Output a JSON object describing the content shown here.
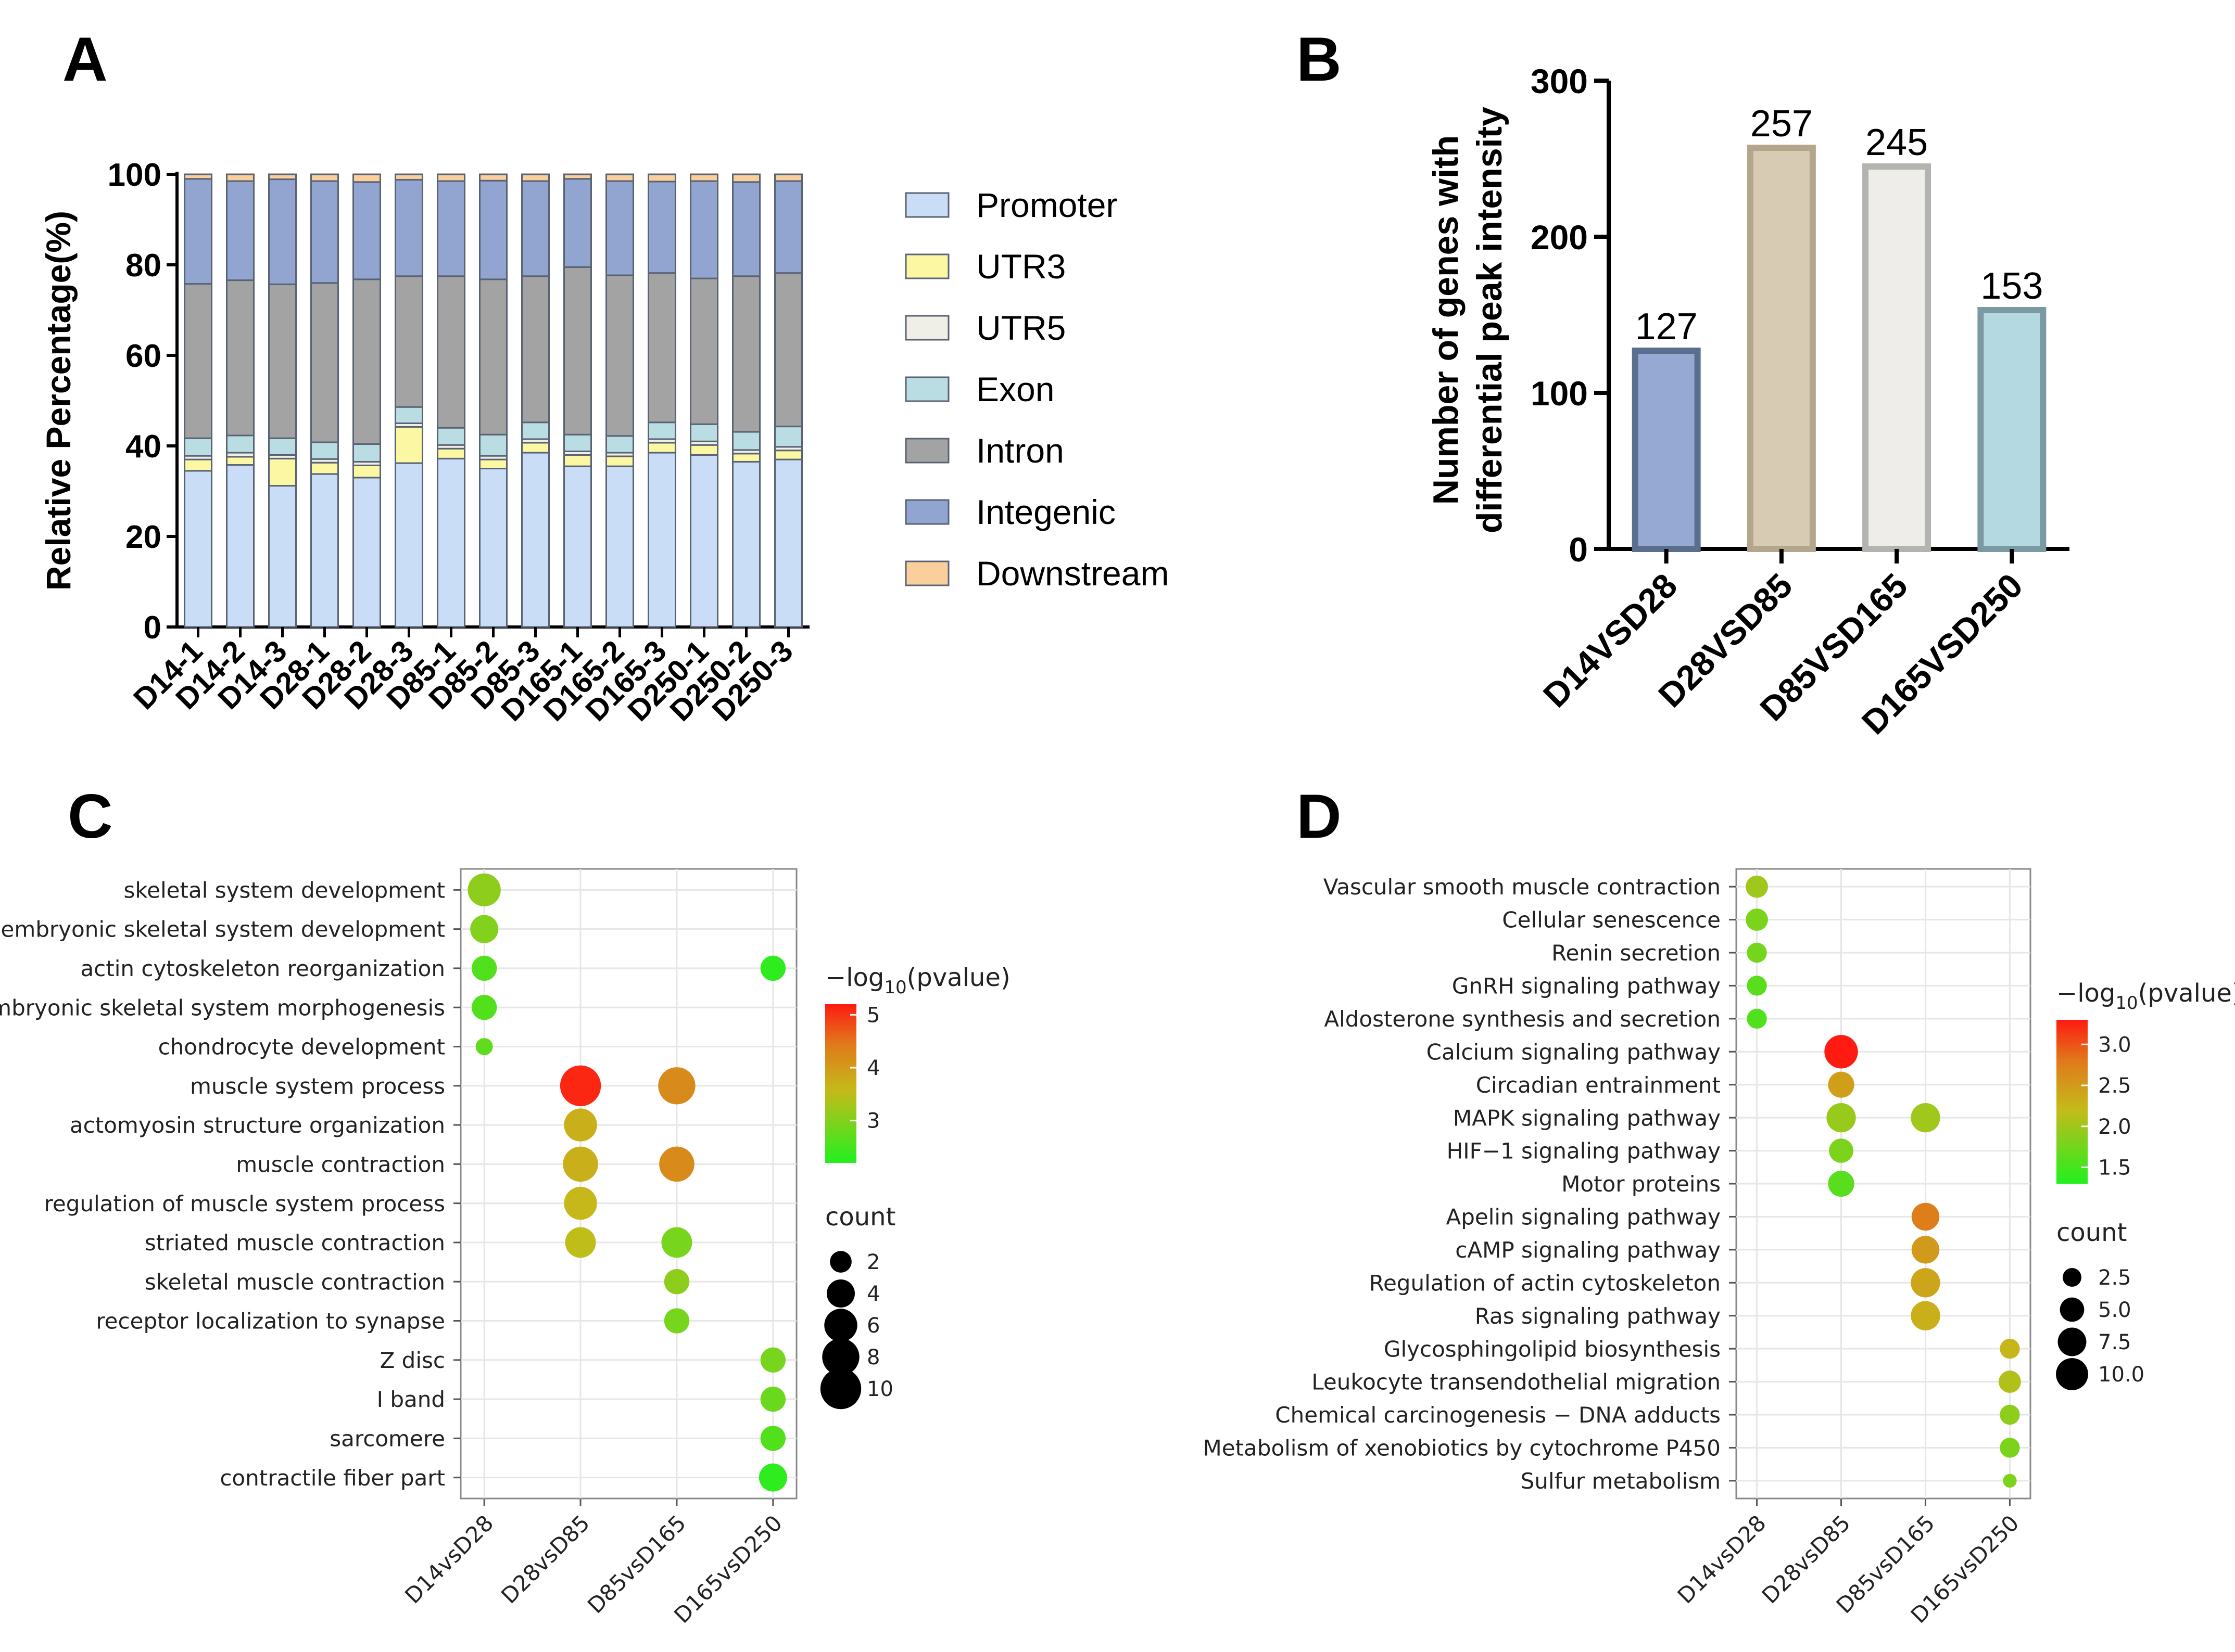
{
  "chart_data": [
    {
      "type": "bar",
      "panel": "A",
      "stacked": true,
      "ylabel": "Relative Percentage(%)",
      "ylim": [
        0,
        100
      ],
      "yticks": [
        "0",
        "20",
        "40",
        "60",
        "80",
        "100"
      ],
      "categories": [
        "D14-1",
        "D14-2",
        "D14-3",
        "D28-1",
        "D28-2",
        "D28-3",
        "D85-1",
        "D85-2",
        "D85-3",
        "D165-1",
        "D165-2",
        "D165-3",
        "D250-1",
        "D250-2",
        "D250-3"
      ],
      "series": [
        {
          "name": "Promoter",
          "color": "#c9ddf7",
          "values": [
            34.5,
            35.8,
            31.2,
            33.8,
            33.0,
            36.2,
            37.2,
            35.0,
            38.5,
            35.5,
            35.5,
            38.5,
            38.0,
            36.5,
            37.0
          ]
        },
        {
          "name": "UTR3",
          "color": "#fbf7a2",
          "values": [
            2.5,
            1.8,
            6.0,
            2.5,
            2.7,
            8.0,
            2.2,
            2.0,
            2.2,
            2.5,
            2.2,
            2.2,
            2.2,
            1.8,
            2.0
          ]
        },
        {
          "name": "UTR5",
          "color": "#efefe8",
          "values": [
            0.8,
            0.9,
            0.8,
            0.8,
            0.8,
            0.8,
            0.8,
            0.8,
            0.8,
            0.8,
            0.8,
            0.8,
            0.8,
            0.8,
            0.8
          ]
        },
        {
          "name": "Exon",
          "color": "#b9dde2",
          "values": [
            3.9,
            3.8,
            3.7,
            3.7,
            3.9,
            3.6,
            3.8,
            4.7,
            3.7,
            3.7,
            3.7,
            3.7,
            3.8,
            4.0,
            4.5
          ]
        },
        {
          "name": "Intron",
          "color": "#a3a3a3",
          "values": [
            34.1,
            34.3,
            34.0,
            35.2,
            36.4,
            28.9,
            33.5,
            34.3,
            32.3,
            37.0,
            35.5,
            33.0,
            32.2,
            34.4,
            33.9
          ]
        },
        {
          "name": "Integenic",
          "color": "#91a5d0",
          "values": [
            23.2,
            21.9,
            23.2,
            22.5,
            21.5,
            21.3,
            21.0,
            21.8,
            21.0,
            19.5,
            20.8,
            20.2,
            21.5,
            20.8,
            20.3
          ]
        },
        {
          "name": "Downstream",
          "color": "#fbcf9c",
          "values": [
            1.0,
            1.5,
            1.1,
            1.5,
            1.7,
            1.2,
            1.5,
            1.4,
            1.5,
            1.0,
            1.5,
            1.6,
            1.5,
            1.7,
            1.5
          ]
        }
      ]
    },
    {
      "type": "bar",
      "panel": "B",
      "ylabel": "Number of genes with differential peak intensity",
      "ylabel_lines": [
        "Number of genes with",
        "differential peak intensity"
      ],
      "ylim": [
        0,
        300
      ],
      "yticks": [
        "0",
        "100",
        "200",
        "300"
      ],
      "categories": [
        "D14VSD28",
        "D28VSD85",
        "D85VSD165",
        "D165VSD250"
      ],
      "values": [
        127,
        257,
        245,
        153
      ],
      "value_labels": [
        "127",
        "257",
        "245",
        "153"
      ],
      "fill_colors": [
        "#96a9d2",
        "#d8cbb4",
        "#efedea",
        "#b5d9e0"
      ],
      "edge_colors": [
        "#5c6e8e",
        "#b3a68c",
        "#b3b3b0",
        "#7a99a2"
      ]
    },
    {
      "type": "scatter",
      "panel": "C",
      "subtype": "dot-plot",
      "x_categories": [
        "D14vsD28",
        "D28vsD85",
        "D85vsD165",
        "D165vsD250"
      ],
      "y_categories": [
        "skeletal system development",
        "embryonic skeletal system development",
        "actin cytoskeleton reorganization",
        "embryonic skeletal system morphogenesis",
        "chondrocyte development",
        "muscle system process",
        "actomyosin structure organization",
        "muscle contraction",
        "regulation of muscle system process",
        "striated muscle contraction",
        "skeletal muscle contraction",
        "receptor localization to synapse",
        "Z disc",
        "I band",
        "sarcomere",
        "contractile fiber part"
      ],
      "color_legend": {
        "title_prefix": "−log",
        "title_sub": "10",
        "title_suffix": "(pvalue)",
        "min": 2.2,
        "max": 5.2,
        "ticks": [
          "5",
          "4",
          "3"
        ],
        "tick_values": [
          5,
          4,
          3
        ]
      },
      "size_legend": {
        "title": "count",
        "labels": [
          "2",
          "4",
          "6",
          "8",
          "10"
        ],
        "values": [
          2,
          4,
          6,
          8,
          10
        ]
      },
      "points": [
        {
          "x": 0,
          "y": 0,
          "count": 6,
          "p": 3.1
        },
        {
          "x": 0,
          "y": 1,
          "count": 4,
          "p": 3.0
        },
        {
          "x": 0,
          "y": 2,
          "count": 3,
          "p": 2.6
        },
        {
          "x": 0,
          "y": 3,
          "count": 3,
          "p": 2.6
        },
        {
          "x": 0,
          "y": 4,
          "count": 1,
          "p": 2.7
        },
        {
          "x": 1,
          "y": 5,
          "count": 10,
          "p": 5.1
        },
        {
          "x": 1,
          "y": 6,
          "count": 6,
          "p": 3.7
        },
        {
          "x": 1,
          "y": 7,
          "count": 7,
          "p": 3.7
        },
        {
          "x": 1,
          "y": 8,
          "count": 6,
          "p": 3.6
        },
        {
          "x": 1,
          "y": 9,
          "count": 5,
          "p": 3.5
        },
        {
          "x": 2,
          "y": 5,
          "count": 8,
          "p": 4.2
        },
        {
          "x": 2,
          "y": 7,
          "count": 7,
          "p": 4.2
        },
        {
          "x": 2,
          "y": 9,
          "count": 5,
          "p": 2.9
        },
        {
          "x": 2,
          "y": 10,
          "count": 3,
          "p": 3.1
        },
        {
          "x": 2,
          "y": 11,
          "count": 3,
          "p": 2.9
        },
        {
          "x": 3,
          "y": 2,
          "count": 3,
          "p": 2.3
        },
        {
          "x": 3,
          "y": 12,
          "count": 3,
          "p": 2.9
        },
        {
          "x": 3,
          "y": 13,
          "count": 3,
          "p": 2.8
        },
        {
          "x": 3,
          "y": 14,
          "count": 3,
          "p": 2.6
        },
        {
          "x": 3,
          "y": 15,
          "count": 4,
          "p": 2.3
        }
      ]
    },
    {
      "type": "scatter",
      "panel": "D",
      "subtype": "dot-plot",
      "x_categories": [
        "D14vsD28",
        "D28vsD85",
        "D85vsD165",
        "D165vsD250"
      ],
      "y_categories": [
        "Vascular smooth muscle contraction",
        "Cellular senescence",
        "Renin secretion",
        "GnRH signaling pathway",
        "Aldosterone synthesis and secretion",
        "Calcium signaling pathway",
        "Circadian entrainment",
        "MAPK signaling pathway",
        "HIF−1 signaling pathway",
        "Motor proteins",
        "Apelin signaling pathway",
        "cAMP signaling pathway",
        "Regulation of actin cytoskeleton",
        "Ras signaling pathway",
        "Glycosphingolipid biosynthesis",
        "Leukocyte transendothelial migration",
        "Chemical carcinogenesis − DNA adducts",
        "Metabolism of xenobiotics by cytochrome P450",
        "Sulfur metabolism"
      ],
      "color_legend": {
        "title_prefix": "−log",
        "title_sub": "10",
        "title_suffix": "(pvalue)",
        "min": 1.3,
        "max": 3.3,
        "ticks": [
          "3.0",
          "2.5",
          "2.0",
          "1.5"
        ],
        "tick_values": [
          3.0,
          2.5,
          2.0,
          1.5
        ]
      },
      "size_legend": {
        "title": "count",
        "labels": [
          "2.5",
          "5.0",
          "7.5",
          "10.0"
        ],
        "values": [
          2.5,
          5.0,
          7.5,
          10.0
        ]
      },
      "points": [
        {
          "x": 0,
          "y": 0,
          "count": 4,
          "p": 2.0
        },
        {
          "x": 0,
          "y": 1,
          "count": 4,
          "p": 1.8
        },
        {
          "x": 0,
          "y": 2,
          "count": 3,
          "p": 1.75
        },
        {
          "x": 0,
          "y": 3,
          "count": 3,
          "p": 1.6
        },
        {
          "x": 0,
          "y": 4,
          "count": 3,
          "p": 1.55
        },
        {
          "x": 1,
          "y": 5,
          "count": 11,
          "p": 3.3
        },
        {
          "x": 1,
          "y": 6,
          "count": 6,
          "p": 2.45
        },
        {
          "x": 1,
          "y": 7,
          "count": 8,
          "p": 1.95
        },
        {
          "x": 1,
          "y": 8,
          "count": 5,
          "p": 1.8
        },
        {
          "x": 1,
          "y": 9,
          "count": 6,
          "p": 1.6
        },
        {
          "x": 2,
          "y": 7,
          "count": 8,
          "p": 2.0
        },
        {
          "x": 2,
          "y": 10,
          "count": 7,
          "p": 2.75
        },
        {
          "x": 2,
          "y": 11,
          "count": 7,
          "p": 2.5
        },
        {
          "x": 2,
          "y": 12,
          "count": 8,
          "p": 2.4
        },
        {
          "x": 2,
          "y": 13,
          "count": 8,
          "p": 2.3
        },
        {
          "x": 3,
          "y": 14,
          "count": 3,
          "p": 2.25
        },
        {
          "x": 3,
          "y": 15,
          "count": 4,
          "p": 2.1
        },
        {
          "x": 3,
          "y": 16,
          "count": 3,
          "p": 1.9
        },
        {
          "x": 3,
          "y": 17,
          "count": 3,
          "p": 1.8
        },
        {
          "x": 3,
          "y": 18,
          "count": 1,
          "p": 1.8
        }
      ]
    }
  ]
}
